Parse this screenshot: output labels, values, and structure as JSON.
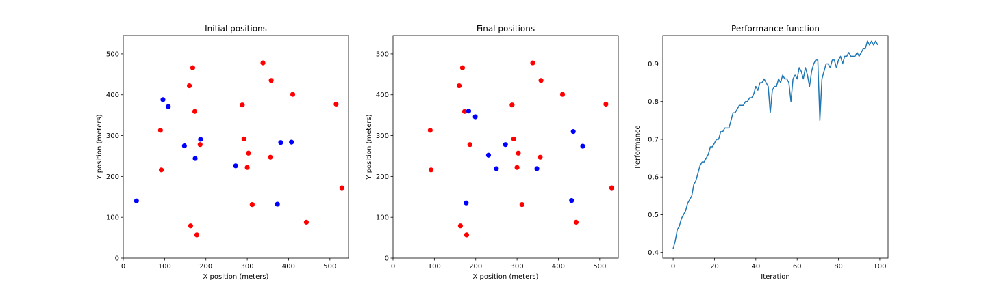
{
  "chart_data": [
    {
      "type": "scatter",
      "title": "Initial positions",
      "xlabel": "X position (meters)",
      "ylabel": "Y position (meters)",
      "xlim": [
        0,
        545
      ],
      "ylim": [
        0,
        545
      ],
      "xticks": [
        0,
        100,
        200,
        300,
        400,
        500
      ],
      "yticks": [
        0,
        100,
        200,
        300,
        400,
        500
      ],
      "grid": false,
      "series": [
        {
          "color": "#ff0000",
          "points": [
            [
              168,
              466
            ],
            [
              338,
              478
            ],
            [
              160,
              422
            ],
            [
              358,
              435
            ],
            [
              410,
              401
            ],
            [
              515,
              377
            ],
            [
              288,
              375
            ],
            [
              173,
              359
            ],
            [
              90,
              313
            ],
            [
              292,
              292
            ],
            [
              186,
              278
            ],
            [
              303,
              257
            ],
            [
              300,
              222
            ],
            [
              356,
              247
            ],
            [
              92,
              216
            ],
            [
              529,
              172
            ],
            [
              312,
              131
            ],
            [
              443,
              88
            ],
            [
              163,
              79
            ],
            [
              178,
              57
            ]
          ]
        },
        {
          "color": "#0000ff",
          "points": [
            [
              96,
              388
            ],
            [
              109,
              371
            ],
            [
              187,
              291
            ],
            [
              148,
              275
            ],
            [
              174,
              244
            ],
            [
              381,
              283
            ],
            [
              407,
              284
            ],
            [
              272,
              226
            ],
            [
              373,
              132
            ],
            [
              32,
              140
            ]
          ]
        }
      ]
    },
    {
      "type": "scatter",
      "title": "Final positions",
      "xlabel": "X position (meters)",
      "ylabel": "Y position (meters)",
      "xlim": [
        0,
        545
      ],
      "ylim": [
        0,
        545
      ],
      "xticks": [
        0,
        100,
        200,
        300,
        400,
        500
      ],
      "yticks": [
        0,
        100,
        200,
        300,
        400,
        500
      ],
      "grid": false,
      "series": [
        {
          "color": "#ff0000",
          "points": [
            [
              168,
              466
            ],
            [
              338,
              478
            ],
            [
              160,
              422
            ],
            [
              358,
              435
            ],
            [
              410,
              401
            ],
            [
              515,
              377
            ],
            [
              288,
              375
            ],
            [
              173,
              359
            ],
            [
              90,
              313
            ],
            [
              292,
              292
            ],
            [
              186,
              278
            ],
            [
              303,
              257
            ],
            [
              300,
              222
            ],
            [
              356,
              247
            ],
            [
              92,
              216
            ],
            [
              529,
              172
            ],
            [
              312,
              131
            ],
            [
              443,
              88
            ],
            [
              163,
              79
            ],
            [
              178,
              57
            ]
          ]
        },
        {
          "color": "#0000ff",
          "points": [
            [
              183,
              360
            ],
            [
              199,
              346
            ],
            [
              231,
              252
            ],
            [
              272,
              278
            ],
            [
              250,
              219
            ],
            [
              348,
              219
            ],
            [
              436,
              310
            ],
            [
              459,
              274
            ],
            [
              432,
              141
            ],
            [
              177,
              135
            ]
          ]
        }
      ]
    },
    {
      "type": "line",
      "title": "Performance function",
      "xlabel": "Iteration",
      "ylabel": "Performance",
      "xlim": [
        -5,
        104
      ],
      "ylim": [
        0.385,
        0.975
      ],
      "xticks": [
        0,
        20,
        40,
        60,
        80,
        100
      ],
      "yticks": [
        0.4,
        0.5,
        0.6,
        0.7,
        0.8,
        0.9
      ],
      "grid": false,
      "series": [
        {
          "color": "#1f77b4",
          "x": [
            0,
            1,
            2,
            3,
            4,
            5,
            6,
            7,
            8,
            9,
            10,
            11,
            12,
            13,
            14,
            15,
            16,
            17,
            18,
            19,
            20,
            21,
            22,
            23,
            24,
            25,
            26,
            27,
            28,
            29,
            30,
            31,
            32,
            33,
            34,
            35,
            36,
            37,
            38,
            39,
            40,
            41,
            42,
            43,
            44,
            45,
            46,
            47,
            48,
            49,
            50,
            51,
            52,
            53,
            54,
            55,
            56,
            57,
            58,
            59,
            60,
            61,
            62,
            63,
            64,
            65,
            66,
            67,
            68,
            69,
            70,
            71,
            72,
            73,
            74,
            75,
            76,
            77,
            78,
            79,
            80,
            81,
            82,
            83,
            84,
            85,
            86,
            87,
            88,
            89,
            90,
            91,
            92,
            93,
            94,
            95,
            96,
            97,
            98,
            99
          ],
          "y": [
            0.41,
            0.43,
            0.46,
            0.47,
            0.49,
            0.5,
            0.51,
            0.53,
            0.54,
            0.55,
            0.58,
            0.59,
            0.61,
            0.63,
            0.64,
            0.64,
            0.65,
            0.66,
            0.68,
            0.68,
            0.69,
            0.7,
            0.7,
            0.72,
            0.72,
            0.73,
            0.73,
            0.73,
            0.75,
            0.77,
            0.77,
            0.78,
            0.79,
            0.79,
            0.79,
            0.8,
            0.8,
            0.81,
            0.81,
            0.82,
            0.84,
            0.83,
            0.85,
            0.85,
            0.86,
            0.85,
            0.84,
            0.77,
            0.83,
            0.84,
            0.84,
            0.86,
            0.85,
            0.87,
            0.86,
            0.86,
            0.85,
            0.8,
            0.86,
            0.87,
            0.86,
            0.89,
            0.88,
            0.86,
            0.89,
            0.87,
            0.84,
            0.88,
            0.9,
            0.91,
            0.91,
            0.75,
            0.86,
            0.88,
            0.9,
            0.9,
            0.89,
            0.91,
            0.91,
            0.89,
            0.91,
            0.92,
            0.9,
            0.92,
            0.92,
            0.93,
            0.92,
            0.92,
            0.92,
            0.93,
            0.92,
            0.93,
            0.94,
            0.94,
            0.96,
            0.95,
            0.96,
            0.95,
            0.96,
            0.95
          ]
        }
      ]
    }
  ]
}
